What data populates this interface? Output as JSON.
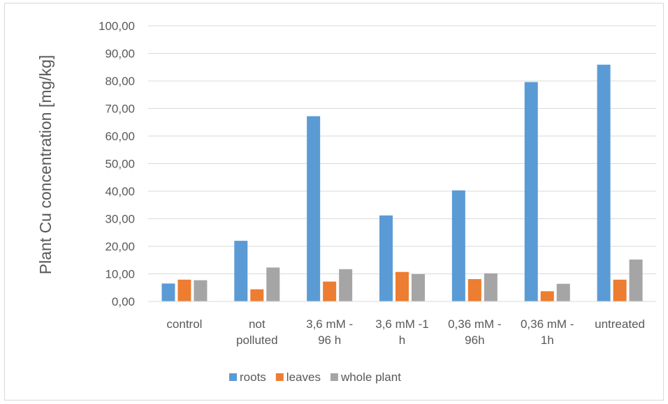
{
  "chart_data": {
    "type": "bar",
    "title": "",
    "xlabel": "",
    "ylabel": "Plant Cu concentration [mg/kg]",
    "categories": [
      [
        "control"
      ],
      [
        "not",
        "polluted"
      ],
      [
        "3,6 mM -",
        "96 h"
      ],
      [
        "3,6 mM -1",
        "h"
      ],
      [
        "0,36 mM -",
        "96h"
      ],
      [
        "0,36 mM -",
        "1h"
      ],
      [
        "untreated"
      ]
    ],
    "series": [
      {
        "name": "roots",
        "color": "#5b9bd5",
        "values": [
          6.5,
          22.0,
          67.2,
          31.2,
          40.3,
          79.6,
          85.9
        ]
      },
      {
        "name": "leaves",
        "color": "#ed7d31",
        "values": [
          7.9,
          4.4,
          7.2,
          10.7,
          8.1,
          3.7,
          7.9
        ]
      },
      {
        "name": "whole plant",
        "color": "#a5a5a5",
        "values": [
          7.7,
          12.3,
          11.7,
          9.9,
          10.2,
          6.4,
          15.2
        ]
      }
    ],
    "ylim": [
      0,
      100
    ],
    "ytick_step": 10,
    "ytick_labels": [
      "0,00",
      "10,00",
      "20,00",
      "30,00",
      "40,00",
      "50,00",
      "60,00",
      "70,00",
      "80,00",
      "90,00",
      "100,00"
    ],
    "grid": true,
    "legend_position": "bottom"
  }
}
